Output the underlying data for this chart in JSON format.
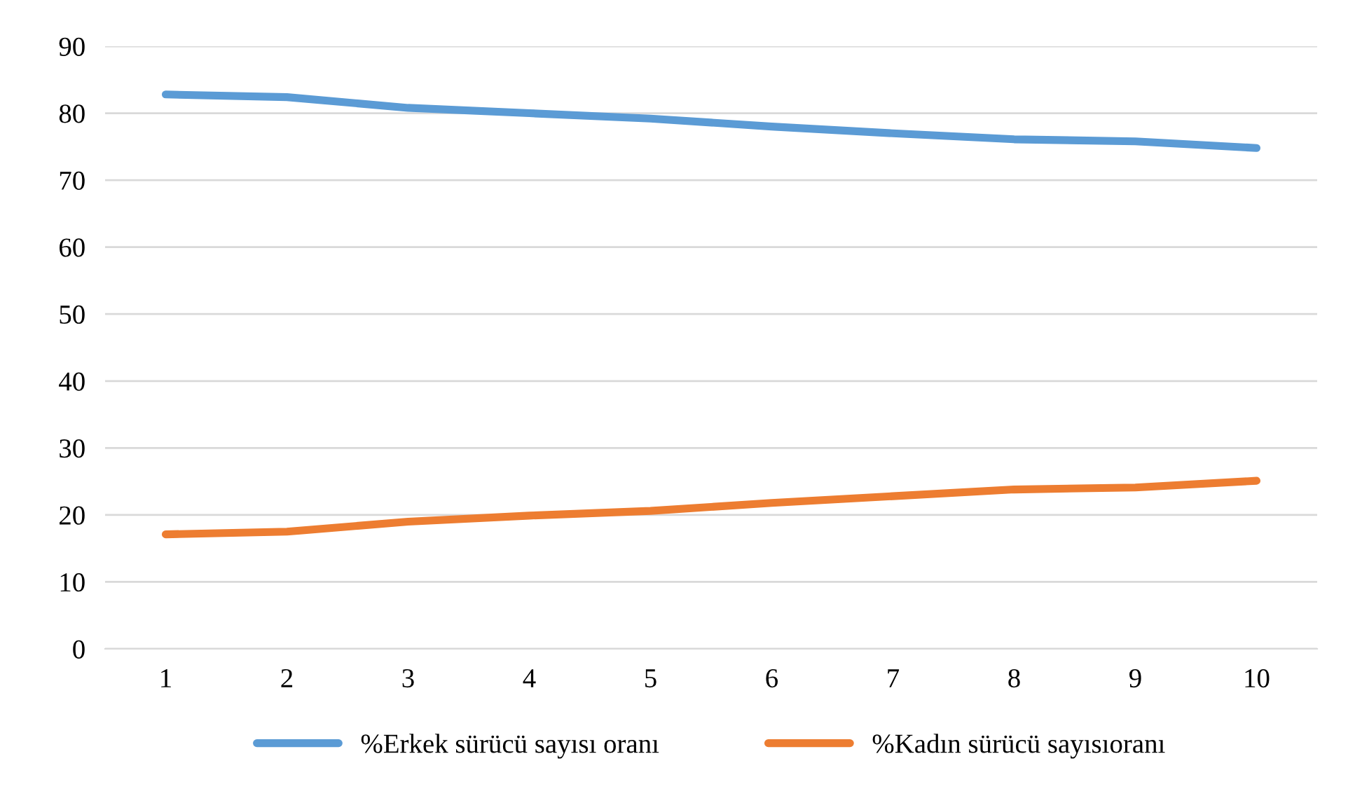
{
  "chart_data": {
    "type": "line",
    "categories": [
      "1",
      "2",
      "3",
      "4",
      "5",
      "6",
      "7",
      "8",
      "9",
      "10"
    ],
    "series": [
      {
        "name": "%Erkek sürücü sayısı oranı",
        "color": "#5b9bd5",
        "values": [
          82.8,
          82.4,
          80.8,
          80.0,
          79.2,
          78.0,
          77.0,
          76.1,
          75.8,
          74.8
        ]
      },
      {
        "name": "%Kadın sürücü sayısıoranı",
        "color": "#ed7d31",
        "values": [
          17.1,
          17.5,
          19.0,
          19.9,
          20.6,
          21.8,
          22.8,
          23.8,
          24.1,
          25.1
        ]
      }
    ],
    "ylim": [
      0,
      90
    ],
    "yticks": [
      0,
      10,
      20,
      30,
      40,
      50,
      60,
      70,
      80,
      90
    ],
    "grid": "y",
    "legend": "bottom",
    "marker": "none",
    "line_style": "solid"
  }
}
